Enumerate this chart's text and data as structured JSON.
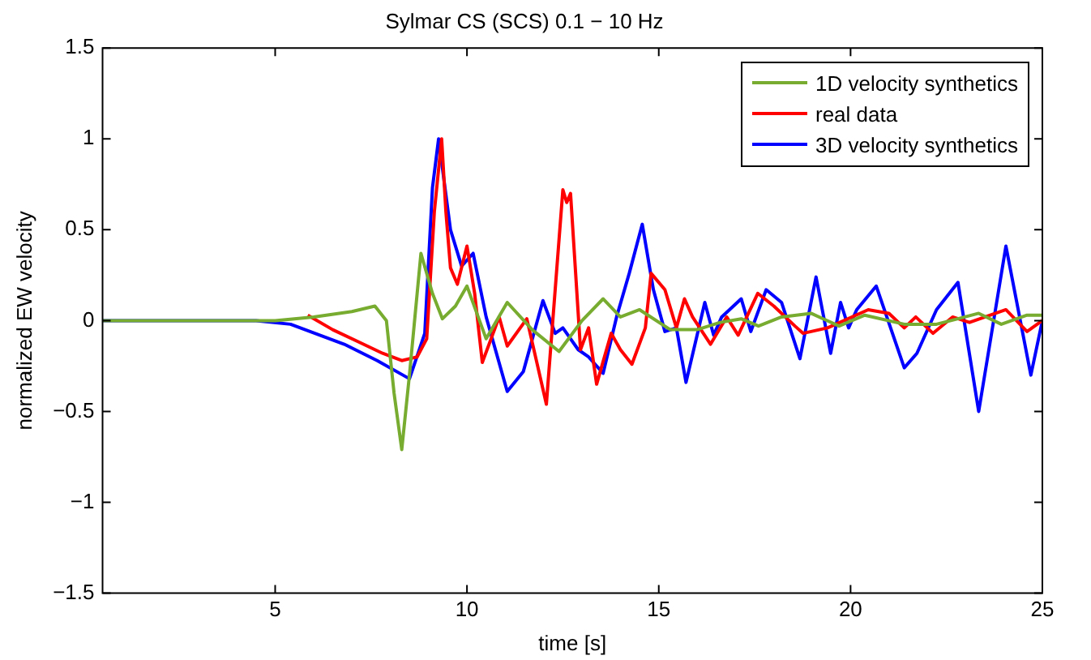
{
  "chart_data": {
    "type": "line",
    "title": "Sylmar CS (SCS) 0.1 − 10 Hz",
    "xlabel": "time [s]",
    "ylabel": "normalized EW velocity",
    "xlim": [
      0.5,
      25
    ],
    "xticks": [
      5,
      10,
      15,
      20,
      25
    ],
    "ylim": [
      -1.5,
      1.5
    ],
    "yticks": [
      {
        "value": -1.5,
        "label": "−1.5"
      },
      {
        "value": -1,
        "label": "−1"
      },
      {
        "value": -0.5,
        "label": "−0.5"
      },
      0,
      0.5,
      1,
      1.5
    ],
    "grid": false,
    "legend": "top right",
    "marker": "none",
    "line_style": "solid",
    "series": [
      {
        "name": "1D velocity synthetics",
        "color": "#77ac30",
        "x": [
          0.5,
          5,
          6,
          7,
          7.6,
          7.9,
          8.1,
          8.3,
          8.5,
          8.8,
          9.1,
          9.36,
          9.7,
          10.0,
          10.5,
          11.05,
          11.7,
          12.4,
          13.0,
          13.55,
          14.0,
          14.5,
          15.3,
          16.0,
          16.6,
          17.15,
          17.6,
          18.2,
          18.97,
          19.7,
          20.37,
          21.4,
          22.24,
          22.8,
          23.34,
          23.93,
          24.6,
          25
        ],
        "values": [
          0,
          0,
          0.02,
          0.05,
          0.08,
          0.0,
          -0.4,
          -0.71,
          -0.3,
          0.37,
          0.15,
          0.01,
          0.08,
          0.19,
          -0.1,
          0.1,
          -0.05,
          -0.17,
          0.0,
          0.12,
          0.02,
          0.06,
          -0.05,
          -0.05,
          -0.01,
          0.01,
          -0.03,
          0.02,
          0.04,
          -0.03,
          0.03,
          -0.02,
          -0.02,
          0.01,
          0.04,
          -0.02,
          0.03,
          0.03
        ]
      },
      {
        "name": "real data",
        "color": "#ff0000",
        "x": [
          5.85,
          6.5,
          7.2,
          7.8,
          8.3,
          8.7,
          8.95,
          9.15,
          9.34,
          9.45,
          9.57,
          9.75,
          10.0,
          10.2,
          10.4,
          10.84,
          11.05,
          11.56,
          12.07,
          12.5,
          12.6,
          12.7,
          12.96,
          13.17,
          13.38,
          13.76,
          14.0,
          14.3,
          14.65,
          14.8,
          15.16,
          15.46,
          15.67,
          15.88,
          16.35,
          16.77,
          17.07,
          17.58,
          18.0,
          18.55,
          18.76,
          19.4,
          20.46,
          21.0,
          21.4,
          21.7,
          22.15,
          22.66,
          23.1,
          24.05,
          24.6,
          25
        ],
        "values": [
          0.03,
          -0.05,
          -0.12,
          -0.18,
          -0.22,
          -0.2,
          -0.1,
          0.6,
          1.0,
          0.6,
          0.29,
          0.2,
          0.41,
          0.15,
          -0.23,
          0.02,
          -0.14,
          0.01,
          -0.46,
          0.72,
          0.65,
          0.7,
          -0.16,
          -0.04,
          -0.35,
          -0.07,
          -0.16,
          -0.24,
          -0.04,
          0.26,
          0.17,
          -0.04,
          0.12,
          0.02,
          -0.13,
          0.02,
          -0.08,
          0.15,
          0.08,
          -0.03,
          -0.07,
          -0.04,
          0.06,
          0.04,
          -0.04,
          0.02,
          -0.07,
          0.02,
          -0.01,
          0.06,
          -0.06,
          0.0
        ]
      },
      {
        "name": "3D velocity synthetics",
        "color": "#0000ff",
        "x": [
          0.5,
          4.5,
          5.4,
          6.8,
          7.66,
          8.5,
          8.9,
          9.1,
          9.26,
          9.57,
          9.86,
          10.16,
          10.5,
          11.05,
          11.47,
          11.98,
          12.3,
          12.5,
          12.9,
          13.17,
          13.55,
          13.9,
          14.23,
          14.57,
          14.86,
          15.16,
          15.46,
          15.71,
          16.0,
          16.2,
          16.43,
          16.64,
          17.15,
          17.4,
          17.8,
          18.2,
          18.68,
          19.1,
          19.48,
          19.74,
          19.95,
          20.16,
          20.67,
          21.4,
          21.73,
          22.24,
          22.8,
          23.34,
          24.05,
          24.7,
          25
        ],
        "values": [
          0,
          0,
          -0.02,
          -0.13,
          -0.22,
          -0.32,
          -0.07,
          0.73,
          1.0,
          0.5,
          0.3,
          0.37,
          0.02,
          -0.39,
          -0.28,
          0.11,
          -0.07,
          -0.04,
          -0.16,
          -0.2,
          -0.29,
          0.02,
          0.26,
          0.53,
          0.17,
          -0.06,
          -0.04,
          -0.34,
          -0.08,
          0.1,
          -0.08,
          0.02,
          0.12,
          -0.06,
          0.17,
          0.1,
          -0.21,
          0.24,
          -0.18,
          0.1,
          -0.04,
          0.06,
          0.19,
          -0.26,
          -0.18,
          0.06,
          0.21,
          -0.5,
          0.41,
          -0.3,
          0.0
        ]
      }
    ]
  }
}
